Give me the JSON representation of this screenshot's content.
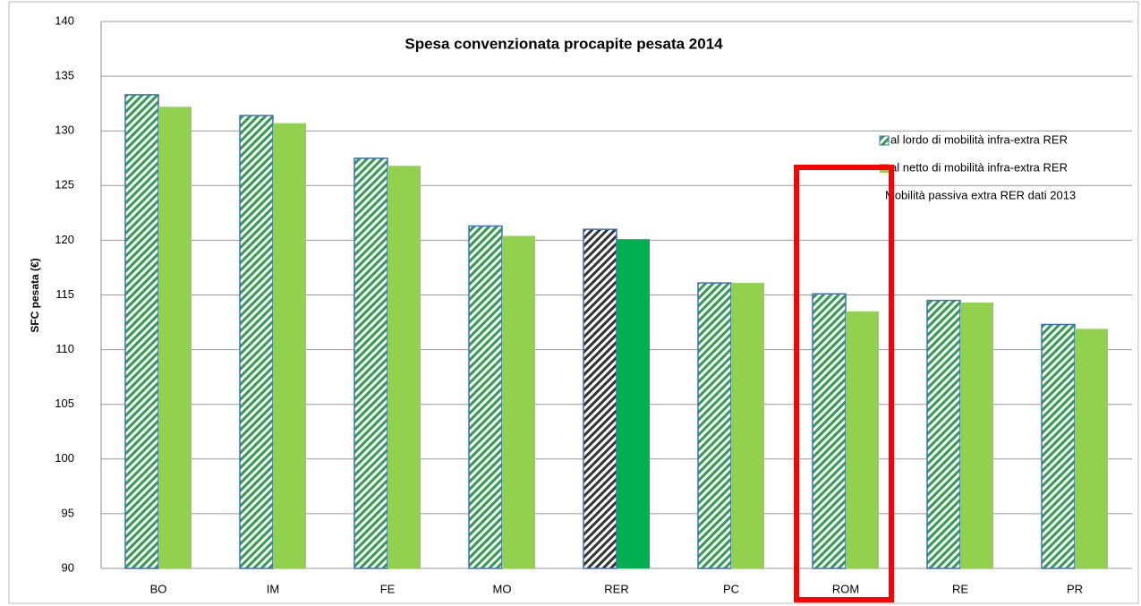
{
  "chart_data": {
    "type": "bar",
    "title": "Spesa convenzionata procapite pesata 2014",
    "y_label": "SFC pesata (€)",
    "categories": [
      "BO",
      "IM",
      "FE",
      "MO",
      "RER",
      "PC",
      "ROM",
      "RE",
      "PR"
    ],
    "series": [
      {
        "name": "al lordo di mobilità infra-extra RER",
        "color": "#2e9e4a",
        "border": "#3f6fb5",
        "hatched": true,
        "colors": [
          "#2e9e4a",
          "#2e9e4a",
          "#2e9e4a",
          "#2e9e4a",
          "#333333",
          "#2e9e4a",
          "#2e9e4a",
          "#2e9e4a",
          "#2e9e4a"
        ],
        "values": [
          133.3,
          131.4,
          127.5,
          121.3,
          121.0,
          116.1,
          115.1,
          114.5,
          112.3
        ]
      },
      {
        "name": "al netto di mobilità infra-extra RER",
        "color": "#92d050",
        "hatched": false,
        "colors": [
          "#92d050",
          "#92d050",
          "#92d050",
          "#92d050",
          "#00b050",
          "#92d050",
          "#92d050",
          "#92d050",
          "#92d050"
        ],
        "values": [
          132.2,
          130.7,
          126.8,
          120.4,
          120.1,
          116.1,
          113.5,
          114.3,
          111.9
        ]
      }
    ],
    "note": "Mobilità passiva extra RER dati 2013",
    "ylim": [
      90,
      140
    ],
    "yticks": [
      90,
      95,
      100,
      105,
      110,
      115,
      120,
      125,
      130,
      135,
      140
    ],
    "grid": true,
    "legend": "right",
    "highlight_index": 6,
    "highlight_color": "#ff0000"
  }
}
